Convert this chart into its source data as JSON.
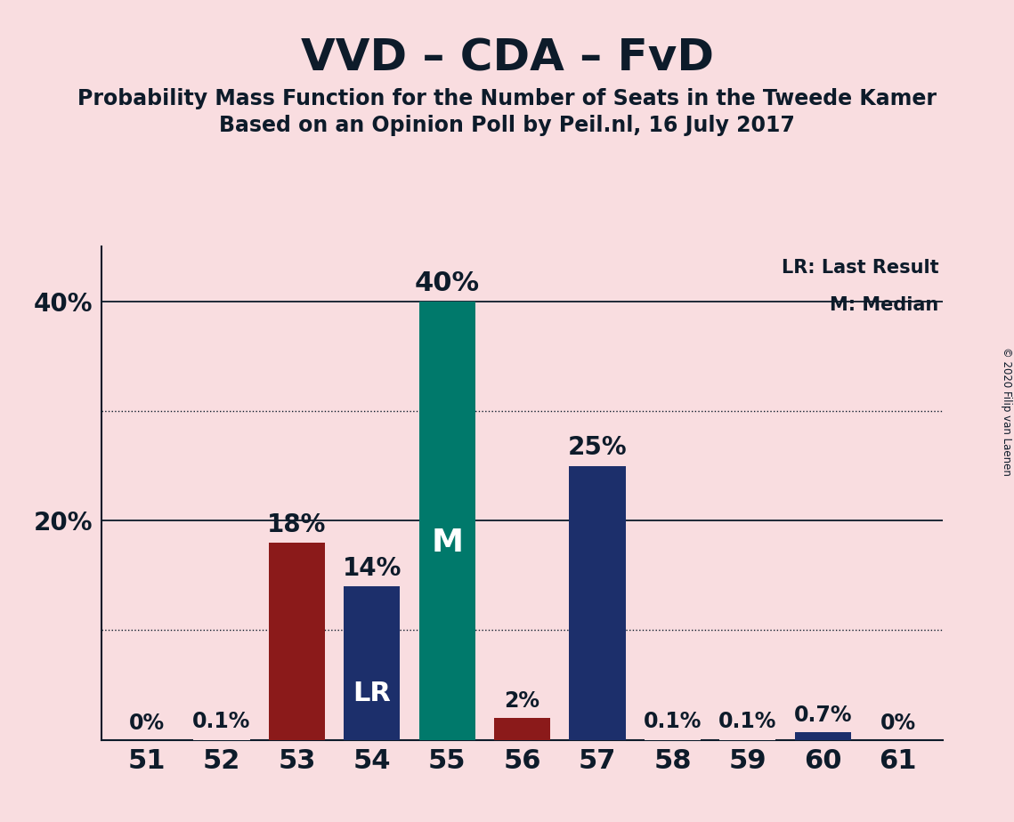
{
  "title": "VVD – CDA – FvD",
  "subtitle1": "Probability Mass Function for the Number of Seats in the Tweede Kamer",
  "subtitle2": "Based on an Opinion Poll by Peil.nl, 16 July 2017",
  "copyright": "© 2020 Filip van Laenen",
  "legend_lr": "LR: Last Result",
  "legend_m": "M: Median",
  "background_color": "#f9dde0",
  "categories": [
    51,
    52,
    53,
    54,
    55,
    56,
    57,
    58,
    59,
    60,
    61
  ],
  "values": [
    0.0,
    0.1,
    18.0,
    14.0,
    40.0,
    2.0,
    25.0,
    0.1,
    0.1,
    0.7,
    0.0
  ],
  "labels": [
    "0%",
    "0.1%",
    "18%",
    "14%",
    "40%",
    "2%",
    "25%",
    "0.1%",
    "0.1%",
    "0.7%",
    "0%"
  ],
  "bar_colors": [
    "#f9dde0",
    "#f9dde0",
    "#8b1a1a",
    "#1c2f6b",
    "#00796b",
    "#8b1a1a",
    "#1c2f6b",
    "#f9dde0",
    "#f9dde0",
    "#1c2f6b",
    "#f9dde0"
  ],
  "lr_bar": 54,
  "median_bar": 55,
  "ylim": [
    0,
    45
  ],
  "yticks": [
    20,
    40
  ],
  "ytick_labels": [
    "20%",
    "40%"
  ],
  "solid_gridlines": [
    20,
    40
  ],
  "dotted_gridlines": [
    10,
    30
  ],
  "title_fontsize": 36,
  "subtitle_fontsize": 17,
  "label_fontsize": 17,
  "tick_fontsize": 20,
  "text_color": "#0d1b2a"
}
